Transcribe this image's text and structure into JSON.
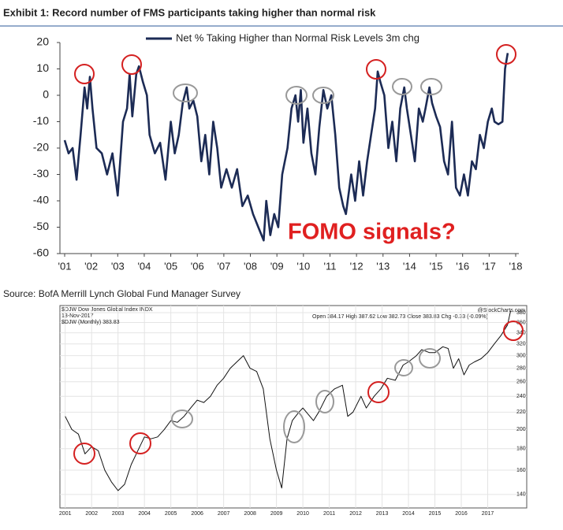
{
  "chart_data": [
    {
      "type": "line",
      "title": "Exhibit 1: Record number of FMS participants taking higher than normal risk",
      "annotation": "FOMO signals?",
      "source": "Source: BofA Merrill Lynch Global Fund Manager Survey",
      "xlim": [
        2001,
        2018
      ],
      "ylim": [
        -60,
        20
      ],
      "yticks": [
        20,
        10,
        0,
        -10,
        -20,
        -30,
        -40,
        -50,
        -60
      ],
      "xticks": [
        {
          "value": 2001,
          "label": "'01"
        },
        {
          "value": 2002,
          "label": "'02"
        },
        {
          "value": 2003,
          "label": "'03"
        },
        {
          "value": 2004,
          "label": "'04"
        },
        {
          "value": 2005,
          "label": "'05"
        },
        {
          "value": 2006,
          "label": "'06"
        },
        {
          "value": 2007,
          "label": "'07"
        },
        {
          "value": 2008,
          "label": "'08"
        },
        {
          "value": 2009,
          "label": "'09"
        },
        {
          "value": 2010,
          "label": "'10"
        },
        {
          "value": 2011,
          "label": "'11"
        },
        {
          "value": 2012,
          "label": "'12"
        },
        {
          "value": 2013,
          "label": "'13"
        },
        {
          "value": 2014,
          "label": "'14"
        },
        {
          "value": 2015,
          "label": "'15"
        },
        {
          "value": 2016,
          "label": "'16"
        },
        {
          "value": 2017,
          "label": "'17"
        },
        {
          "value": 2018,
          "label": "'18"
        }
      ],
      "log": false,
      "x": [
        2001.0,
        2001.15,
        2001.3,
        2001.45,
        2001.6,
        2001.75,
        2001.85,
        2001.95,
        2002.05,
        2002.2,
        2002.4,
        2002.6,
        2002.8,
        2003.0,
        2003.2,
        2003.35,
        2003.45,
        2003.55,
        2003.7,
        2003.8,
        2003.95,
        2004.1,
        2004.2,
        2004.4,
        2004.6,
        2004.8,
        2005.0,
        2005.15,
        2005.3,
        2005.45,
        2005.6,
        2005.7,
        2005.85,
        2006.0,
        2006.15,
        2006.3,
        2006.45,
        2006.6,
        2006.75,
        2006.9,
        2007.1,
        2007.3,
        2007.5,
        2007.7,
        2007.9,
        2008.1,
        2008.3,
        2008.5,
        2008.6,
        2008.75,
        2008.9,
        2009.05,
        2009.2,
        2009.4,
        2009.55,
        2009.7,
        2009.8,
        2009.9,
        2010.0,
        2010.15,
        2010.3,
        2010.45,
        2010.6,
        2010.75,
        2010.9,
        2011.05,
        2011.2,
        2011.35,
        2011.5,
        2011.6,
        2011.8,
        2011.95,
        2012.1,
        2012.25,
        2012.4,
        2012.55,
        2012.7,
        2012.8,
        2012.9,
        2013.05,
        2013.2,
        2013.35,
        2013.5,
        2013.65,
        2013.8,
        2013.9,
        2014.05,
        2014.2,
        2014.35,
        2014.5,
        2014.6,
        2014.75,
        2014.85,
        2015.0,
        2015.15,
        2015.3,
        2015.45,
        2015.6,
        2015.75,
        2015.9,
        2016.05,
        2016.2,
        2016.35,
        2016.5,
        2016.65,
        2016.8,
        2016.95,
        2017.1,
        2017.2,
        2017.35,
        2017.5,
        2017.6,
        2017.7
      ],
      "series": [
        {
          "name": "Net % Taking Higher than Normal Risk Levels 3m chg",
          "color": "#1c2b55",
          "values": [
            -17,
            -22,
            -20,
            -32,
            -15,
            3,
            -5,
            7,
            -5,
            -20,
            -22,
            -30,
            -22,
            -38,
            -10,
            -5,
            8,
            -8,
            8,
            11,
            5,
            0,
            -15,
            -22,
            -18,
            -32,
            -10,
            -22,
            -15,
            -3,
            3,
            -5,
            -2,
            -8,
            -25,
            -15,
            -30,
            -10,
            -20,
            -35,
            -28,
            -35,
            -28,
            -42,
            -38,
            -45,
            -50,
            -55,
            -40,
            -53,
            -45,
            -50,
            -30,
            -20,
            -5,
            0,
            -10,
            2,
            -18,
            -5,
            -22,
            -30,
            -12,
            2,
            -5,
            0,
            -15,
            -35,
            -42,
            -45,
            -30,
            -40,
            -25,
            -38,
            -25,
            -15,
            -5,
            9,
            5,
            0,
            -20,
            -10,
            -25,
            -5,
            3,
            -5,
            -15,
            -25,
            -5,
            -10,
            -5,
            3,
            -3,
            -8,
            -12,
            -25,
            -30,
            -10,
            -35,
            -38,
            -30,
            -38,
            -25,
            -28,
            -15,
            -20,
            -10,
            -5,
            -10,
            -11,
            -10,
            10,
            16
          ]
        }
      ]
    },
    {
      "type": "line",
      "title": "$DJW Dow Jones Global Index INDX",
      "date": "13-Nov-2017",
      "quote": "Open 384.17 High 387.62 Low 382.73 Close 383.83 Chg -0.33 (-0.09%)",
      "credit": "@StockCharts.com",
      "xlim": [
        2000.8,
        2018.0
      ],
      "ylim": [
        130,
        395
      ],
      "log": true,
      "yticks": [
        140,
        160,
        180,
        200,
        220,
        240,
        260,
        280,
        300,
        320,
        340,
        360,
        380
      ],
      "xticks": [
        2001,
        2002,
        2003,
        2004,
        2005,
        2006,
        2007,
        2008,
        2009,
        2010,
        2011,
        2012,
        2013,
        2014,
        2015,
        2016,
        2017
      ],
      "grid": true,
      "x": [
        2001.0,
        2001.25,
        2001.5,
        2001.75,
        2002.0,
        2002.25,
        2002.5,
        2002.75,
        2003.0,
        2003.25,
        2003.5,
        2003.75,
        2004.0,
        2004.25,
        2004.5,
        2004.75,
        2005.0,
        2005.25,
        2005.5,
        2005.75,
        2006.0,
        2006.25,
        2006.5,
        2006.75,
        2007.0,
        2007.25,
        2007.5,
        2007.75,
        2008.0,
        2008.25,
        2008.5,
        2008.75,
        2009.0,
        2009.2,
        2009.4,
        2009.6,
        2009.85,
        2010.0,
        2010.4,
        2010.6,
        2010.9,
        2011.2,
        2011.5,
        2011.7,
        2011.9,
        2012.2,
        2012.4,
        2012.7,
        2012.95,
        2013.2,
        2013.5,
        2013.8,
        2014.0,
        2014.3,
        2014.5,
        2014.8,
        2015.0,
        2015.3,
        2015.5,
        2015.7,
        2015.9,
        2016.1,
        2016.3,
        2016.5,
        2016.75,
        2017.0,
        2017.25,
        2017.5,
        2017.75,
        2017.87
      ],
      "series": [
        {
          "name": "$DJW (Monthly) 383.83",
          "color": "#111111",
          "values": [
            215,
            200,
            195,
            175,
            182,
            178,
            160,
            150,
            143,
            148,
            165,
            178,
            192,
            190,
            192,
            200,
            210,
            208,
            215,
            225,
            235,
            232,
            240,
            255,
            265,
            280,
            290,
            300,
            280,
            275,
            250,
            190,
            160,
            145,
            190,
            210,
            220,
            225,
            210,
            220,
            240,
            250,
            255,
            215,
            220,
            240,
            225,
            240,
            250,
            265,
            262,
            285,
            290,
            300,
            310,
            305,
            305,
            315,
            312,
            280,
            295,
            270,
            285,
            290,
            295,
            305,
            320,
            335,
            355,
            384
          ]
        }
      ]
    }
  ]
}
